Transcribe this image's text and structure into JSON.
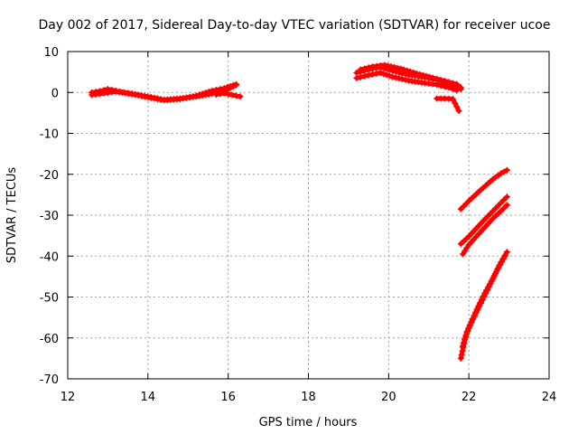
{
  "chart_data": {
    "type": "scatter",
    "title": "Day 002 of 2017, Sidereal Day-to-day VTEC variation (SDTVAR) for receiver ucoe",
    "xlabel": "GPS time / hours",
    "ylabel": "SDTVAR / TECUs",
    "xlim": [
      12,
      24
    ],
    "ylim": [
      -70,
      10
    ],
    "xticks": [
      12,
      14,
      16,
      18,
      20,
      22,
      24
    ],
    "yticks": [
      10,
      0,
      -10,
      -20,
      -30,
      -40,
      -50,
      -60,
      -70
    ],
    "grid": true,
    "marker": "plus",
    "color": "#ff0000",
    "series": [
      {
        "x": [
          12.6,
          12.8,
          13.0,
          13.3,
          13.6,
          14.0,
          14.4,
          14.8,
          15.2,
          15.6,
          15.9,
          16.2
        ],
        "y": [
          0.0,
          0.3,
          0.8,
          0.2,
          -0.3,
          -1.0,
          -1.8,
          -1.5,
          -1.0,
          -0.3,
          0.4,
          1.8
        ]
      },
      {
        "x": [
          12.6,
          12.9,
          13.2,
          13.6,
          14.0,
          14.4,
          14.8,
          15.2,
          15.6,
          15.9,
          16.2
        ],
        "y": [
          -0.6,
          -0.2,
          0.2,
          -0.4,
          -1.2,
          -1.9,
          -1.6,
          -0.8,
          0.4,
          1.0,
          2.0
        ]
      },
      {
        "x": [
          15.7,
          15.9,
          16.1,
          16.3
        ],
        "y": [
          -0.5,
          -0.2,
          -0.6,
          -1.0
        ]
      },
      {
        "x": [
          19.2,
          19.5,
          19.8,
          20.1,
          20.5,
          20.9,
          21.2,
          21.5,
          21.7,
          21.8
        ],
        "y": [
          4.8,
          5.6,
          6.2,
          5.3,
          4.3,
          3.7,
          3.1,
          2.2,
          1.5,
          0.8
        ]
      },
      {
        "x": [
          19.2,
          19.5,
          19.8,
          20.1,
          20.5,
          20.9,
          21.2,
          21.5,
          21.7
        ],
        "y": [
          3.5,
          4.2,
          4.8,
          3.8,
          2.9,
          2.3,
          1.9,
          1.2,
          0.5
        ]
      },
      {
        "x": [
          19.3,
          19.6,
          19.9,
          20.3,
          20.7,
          21.1,
          21.4,
          21.7,
          21.8
        ],
        "y": [
          5.6,
          6.3,
          6.7,
          5.8,
          4.6,
          3.6,
          2.8,
          2.0,
          1.2
        ]
      },
      {
        "x": [
          21.2,
          21.4,
          21.6,
          21.7,
          21.75
        ],
        "y": [
          -1.5,
          -1.5,
          -1.6,
          -3.5,
          -4.5
        ]
      },
      {
        "x": [
          21.8,
          22.0,
          22.3,
          22.6,
          22.8,
          22.95
        ],
        "y": [
          -28.5,
          -26.5,
          -23.8,
          -21.2,
          -19.8,
          -19.0
        ]
      },
      {
        "x": [
          21.8,
          22.0,
          22.3,
          22.6,
          22.8,
          22.95
        ],
        "y": [
          -37.0,
          -35.2,
          -32.0,
          -29.0,
          -27.0,
          -25.5
        ]
      },
      {
        "x": [
          21.85,
          22.0,
          22.3,
          22.6,
          22.8,
          22.95
        ],
        "y": [
          -39.5,
          -37.2,
          -34.0,
          -30.8,
          -29.0,
          -27.5
        ]
      },
      {
        "x": [
          21.8,
          21.9,
          22.0,
          22.2,
          22.4,
          22.6,
          22.8,
          22.95
        ],
        "y": [
          -65.0,
          -60.5,
          -57.5,
          -53.0,
          -49.0,
          -45.5,
          -41.5,
          -39.0
        ]
      },
      {
        "x": [
          21.85,
          21.95,
          22.1,
          22.3,
          22.5,
          22.7,
          22.9
        ],
        "y": [
          -62.0,
          -58.5,
          -55.5,
          -51.5,
          -47.5,
          -43.5,
          -40.0
        ]
      }
    ]
  }
}
